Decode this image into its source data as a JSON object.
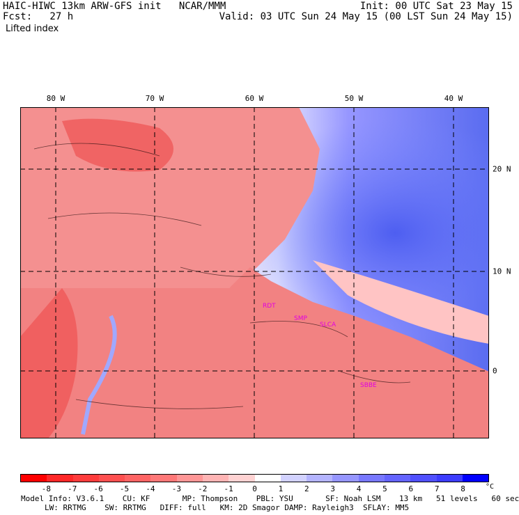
{
  "header": {
    "title": "HAIC-HIWC 13km ARW-GFS init   NCAR/MMM",
    "forecast": "Fcst:   27 h",
    "init": "Init: 00 UTC Sat 23 May 15",
    "valid": "Valid: 03 UTC Sun 24 May 15 (00 LST Sun 24 May 15)",
    "field": "Lifted index"
  },
  "longitude_labels": [
    "80 W",
    "70 W",
    "60 W",
    "50 W",
    "40 W"
  ],
  "latitude_labels": [
    "20 N",
    "10 N",
    "0"
  ],
  "stations": [
    "RDT",
    "SMP",
    "SLCA",
    "SBBE"
  ],
  "colorbar": {
    "ticks": [
      "-8",
      "-7",
      "-6",
      "-5",
      "-4",
      "-3",
      "-2",
      "-1",
      "0",
      "1",
      "2",
      "3",
      "4",
      "5",
      "6",
      "7",
      "8"
    ],
    "unit": "°C",
    "colors": [
      "#ff0000",
      "#ff2828",
      "#ff3c3c",
      "#ff5050",
      "#ff6464",
      "#ff7878",
      "#ff9696",
      "#ffb4b4",
      "#ffd2d2",
      "#ffffff",
      "#d2d2ff",
      "#b4b4ff",
      "#9696ff",
      "#7878ff",
      "#6464ff",
      "#5050ff",
      "#3c3cff",
      "#0000ff"
    ]
  },
  "model_info": {
    "line1": "Model Info: V3.6.1    CU: KF       MP: Thompson    PBL: YSU       SF: Noah LSM    13 km   51 levels   60 sec",
    "line2": "LW: RRTMG    SW: RRTMG   DIFF: full   KM: 2D Smagor DAMP: Rayleigh3  SFLAY: MM5"
  },
  "colors": {
    "land_red": "#f07878",
    "ocean_blue": "#5a6cf0",
    "station_magenta": "#e000e0"
  }
}
